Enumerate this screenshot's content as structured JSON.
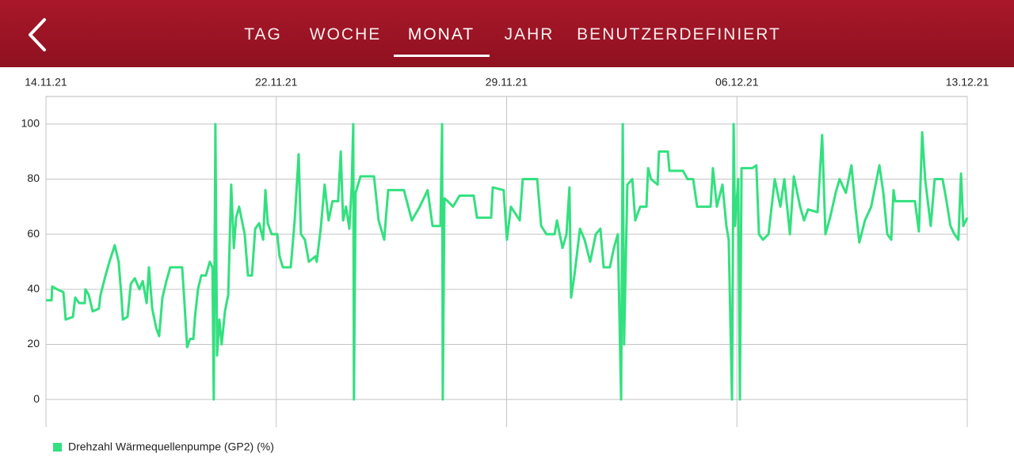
{
  "nav": {
    "tabs": [
      "TAG",
      "WOCHE",
      "MONAT",
      "JAHR",
      "BENUTZERDEFINIERT"
    ],
    "active_tab": 2
  },
  "chart_data": {
    "type": "line",
    "xlim": [
      0,
      28
    ],
    "ylim": [
      -10,
      110
    ],
    "xticks": [
      {
        "value": 0,
        "label": "14.11.21"
      },
      {
        "value": 7,
        "label": "22.11.21"
      },
      {
        "value": 14,
        "label": "29.11.21"
      },
      {
        "value": 21,
        "label": "06.12.21"
      },
      {
        "value": 28,
        "label": "13.12.21"
      }
    ],
    "yticks": [
      0,
      20,
      40,
      60,
      80,
      100
    ],
    "grid": true,
    "legend": "bottom-left",
    "series": [
      {
        "name": "Drehzahl Wärmequellenpumpe (GP2) (%)",
        "color": "#33e07f",
        "x": [
          0,
          0.17,
          0.19,
          0.34,
          0.53,
          0.6,
          0.82,
          0.89,
          1.01,
          1.18,
          1.2,
          1.3,
          1.42,
          1.61,
          1.66,
          1.81,
          1.93,
          2.09,
          2.21,
          2.29,
          2.34,
          2.48,
          2.58,
          2.7,
          2.84,
          2.94,
          3.06,
          3.13,
          3.23,
          3.35,
          3.44,
          3.54,
          3.66,
          3.78,
          3.95,
          4.14,
          4.21,
          4.29,
          4.38,
          4.48,
          4.53,
          4.62,
          4.72,
          4.86,
          4.98,
          5.06,
          5.1,
          5.15,
          5.2,
          5.27,
          5.34,
          5.44,
          5.54,
          5.63,
          5.71,
          5.78,
          5.87,
          6.04,
          6.14,
          6.26,
          6.36,
          6.48,
          6.6,
          6.67,
          6.74,
          6.86,
          7.03,
          7.1,
          7.2,
          7.44,
          7.56,
          7.68,
          7.75,
          7.87,
          7.99,
          8.19,
          8.23,
          8.35,
          8.47,
          8.59,
          8.71,
          8.88,
          8.96,
          9.03,
          9.12,
          9.22,
          9.29,
          9.34,
          9.36,
          9.41,
          9.56,
          9.97,
          10.11,
          10.28,
          10.4,
          10.88,
          11.12,
          11.36,
          11.6,
          11.75,
          11.99,
          12.04,
          12.06,
          12.11,
          12.21,
          12.37,
          12.57,
          13.0,
          13.1,
          13.53,
          13.58,
          13.91,
          14.01,
          14.13,
          14.4,
          14.49,
          14.93,
          15.05,
          15.21,
          15.46,
          15.53,
          15.7,
          15.82,
          15.91,
          15.96,
          16.06,
          16.23,
          16.37,
          16.54,
          16.71,
          16.85,
          16.95,
          17.14,
          17.26,
          17.38,
          17.48,
          17.53,
          17.57,
          17.67,
          17.82,
          17.91,
          18.06,
          18.25,
          18.3,
          18.39,
          18.59,
          18.63,
          18.9,
          18.95,
          19.36,
          19.5,
          19.67,
          19.79,
          20.2,
          20.27,
          20.39,
          20.56,
          20.68,
          20.75,
          20.85,
          20.9,
          20.94,
          21.04,
          21.09,
          21.14,
          21.47,
          21.59,
          21.67,
          21.79,
          21.96,
          22.15,
          22.32,
          22.44,
          22.61,
          22.73,
          22.92,
          23.04,
          23.16,
          23.45,
          23.59,
          23.69,
          23.83,
          24.0,
          24.12,
          24.31,
          24.48,
          24.6,
          24.72,
          24.89,
          25.08,
          25.33,
          25.45,
          25.57,
          25.69,
          25.76,
          25.81,
          26.41,
          26.53,
          26.63,
          26.72,
          26.89,
          27.01,
          27.25,
          27.37,
          27.49,
          27.61,
          27.73,
          27.81,
          27.88,
          28.0
        ],
        "values": [
          36,
          36,
          41,
          40,
          39,
          29,
          30,
          37,
          35,
          35,
          40,
          38,
          32,
          33,
          38,
          45,
          50,
          56,
          50,
          38,
          29,
          30,
          42,
          44,
          40,
          43,
          35,
          48,
          33,
          26,
          23,
          37,
          43,
          48,
          48,
          48,
          35,
          19,
          22,
          22,
          30,
          40,
          45,
          45,
          50,
          48,
          0,
          100,
          16,
          29,
          20,
          32,
          38,
          78,
          55,
          66,
          70,
          60,
          45,
          45,
          62,
          64,
          58,
          76,
          64,
          60,
          60,
          52,
          48,
          48,
          65,
          89,
          60,
          58,
          50,
          52,
          50,
          62,
          78,
          65,
          72,
          72,
          90,
          65,
          70,
          62,
          77,
          100,
          0,
          75,
          81,
          81,
          65,
          58,
          76,
          76,
          65,
          70,
          76,
          63,
          63,
          100,
          0,
          73,
          72,
          70,
          74,
          74,
          66,
          66,
          77,
          76,
          58,
          70,
          65,
          80,
          80,
          63,
          60,
          60,
          65,
          55,
          60,
          77,
          37,
          45,
          62,
          58,
          50,
          60,
          62,
          48,
          48,
          55,
          60,
          0,
          100,
          20,
          78,
          80,
          65,
          70,
          70,
          84,
          80,
          78,
          90,
          90,
          83,
          83,
          80,
          80,
          70,
          70,
          84,
          70,
          78,
          63,
          58,
          0,
          100,
          63,
          80,
          0,
          84,
          84,
          85,
          60,
          58,
          60,
          80,
          70,
          80,
          60,
          81,
          70,
          65,
          69,
          68,
          96,
          60,
          66,
          75,
          80,
          75,
          85,
          70,
          57,
          65,
          70,
          85,
          75,
          60,
          58,
          76,
          72,
          72,
          61,
          97,
          80,
          63,
          80,
          80,
          72,
          63,
          60,
          58,
          82,
          63,
          66
        ]
      }
    ]
  }
}
